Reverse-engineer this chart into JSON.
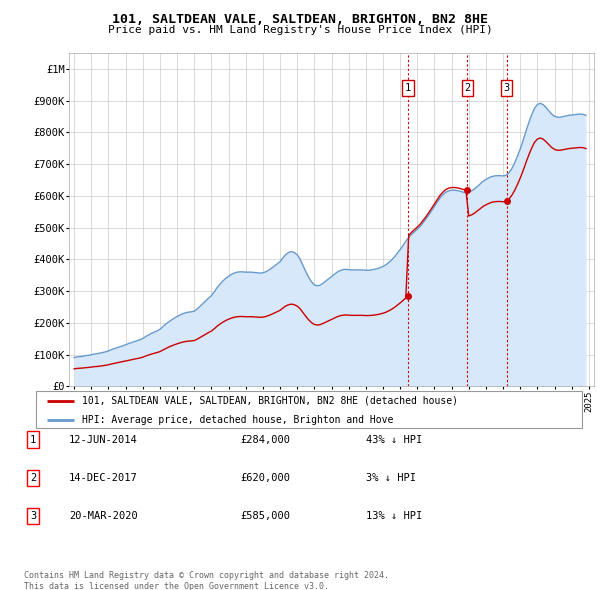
{
  "title": "101, SALTDEAN VALE, SALTDEAN, BRIGHTON, BN2 8HE",
  "subtitle": "Price paid vs. HM Land Registry's House Price Index (HPI)",
  "hpi_raw_years": [
    1995.0,
    1995.17,
    1995.33,
    1995.5,
    1995.67,
    1995.83,
    1996.0,
    1996.17,
    1996.33,
    1996.5,
    1996.67,
    1996.83,
    1997.0,
    1997.17,
    1997.33,
    1997.5,
    1997.67,
    1997.83,
    1998.0,
    1998.17,
    1998.33,
    1998.5,
    1998.67,
    1998.83,
    1999.0,
    1999.17,
    1999.33,
    1999.5,
    1999.67,
    1999.83,
    2000.0,
    2000.17,
    2000.33,
    2000.5,
    2000.67,
    2000.83,
    2001.0,
    2001.17,
    2001.33,
    2001.5,
    2001.67,
    2001.83,
    2002.0,
    2002.17,
    2002.33,
    2002.5,
    2002.67,
    2002.83,
    2003.0,
    2003.17,
    2003.33,
    2003.5,
    2003.67,
    2003.83,
    2004.0,
    2004.17,
    2004.33,
    2004.5,
    2004.67,
    2004.83,
    2005.0,
    2005.17,
    2005.33,
    2005.5,
    2005.67,
    2005.83,
    2006.0,
    2006.17,
    2006.33,
    2006.5,
    2006.67,
    2006.83,
    2007.0,
    2007.17,
    2007.33,
    2007.5,
    2007.67,
    2007.83,
    2008.0,
    2008.17,
    2008.33,
    2008.5,
    2008.67,
    2008.83,
    2009.0,
    2009.17,
    2009.33,
    2009.5,
    2009.67,
    2009.83,
    2010.0,
    2010.17,
    2010.33,
    2010.5,
    2010.67,
    2010.83,
    2011.0,
    2011.17,
    2011.33,
    2011.5,
    2011.67,
    2011.83,
    2012.0,
    2012.17,
    2012.33,
    2012.5,
    2012.67,
    2012.83,
    2013.0,
    2013.17,
    2013.33,
    2013.5,
    2013.67,
    2013.83,
    2014.0,
    2014.17,
    2014.33,
    2014.5,
    2014.67,
    2014.83,
    2015.0,
    2015.17,
    2015.33,
    2015.5,
    2015.67,
    2015.83,
    2016.0,
    2016.17,
    2016.33,
    2016.5,
    2016.67,
    2016.83,
    2017.0,
    2017.17,
    2017.33,
    2017.5,
    2017.67,
    2017.83,
    2018.0,
    2018.17,
    2018.33,
    2018.5,
    2018.67,
    2018.83,
    2019.0,
    2019.17,
    2019.33,
    2019.5,
    2019.67,
    2019.83,
    2020.0,
    2020.17,
    2020.33,
    2020.5,
    2020.67,
    2020.83,
    2021.0,
    2021.17,
    2021.33,
    2021.5,
    2021.67,
    2021.83,
    2022.0,
    2022.17,
    2022.33,
    2022.5,
    2022.67,
    2022.83,
    2023.0,
    2023.17,
    2023.33,
    2023.5,
    2023.67,
    2023.83,
    2024.0,
    2024.17,
    2024.33,
    2024.5,
    2024.67,
    2024.83
  ],
  "hpi_raw_values": [
    91000,
    93000,
    94000,
    95000,
    97000,
    98000,
    100000,
    102000,
    103000,
    105000,
    107000,
    109000,
    112000,
    116000,
    119000,
    122000,
    125000,
    128000,
    131000,
    135000,
    138000,
    141000,
    144000,
    147000,
    151000,
    157000,
    162000,
    167000,
    171000,
    175000,
    180000,
    188000,
    196000,
    203000,
    209000,
    215000,
    220000,
    225000,
    229000,
    232000,
    234000,
    235000,
    237000,
    244000,
    252000,
    261000,
    270000,
    278000,
    286000,
    298000,
    311000,
    322000,
    332000,
    340000,
    347000,
    353000,
    357000,
    360000,
    361000,
    361000,
    360000,
    360000,
    360000,
    359000,
    358000,
    357000,
    358000,
    361000,
    366000,
    372000,
    379000,
    386000,
    393000,
    405000,
    415000,
    422000,
    425000,
    422000,
    415000,
    401000,
    382000,
    362000,
    344000,
    330000,
    320000,
    317000,
    319000,
    325000,
    332000,
    339000,
    346000,
    353000,
    360000,
    365000,
    368000,
    369000,
    368000,
    367000,
    367000,
    367000,
    367000,
    367000,
    366000,
    366000,
    367000,
    369000,
    371000,
    374000,
    378000,
    383000,
    390000,
    398000,
    408000,
    419000,
    431000,
    444000,
    457000,
    469000,
    479000,
    487000,
    495000,
    504000,
    515000,
    527000,
    540000,
    553000,
    567000,
    581000,
    594000,
    604000,
    612000,
    616000,
    618000,
    618000,
    617000,
    615000,
    612000,
    611000,
    612000,
    616000,
    622000,
    630000,
    638000,
    646000,
    652000,
    657000,
    661000,
    663000,
    664000,
    664000,
    663000,
    665000,
    672000,
    685000,
    703000,
    724000,
    748000,
    775000,
    803000,
    831000,
    856000,
    876000,
    888000,
    892000,
    888000,
    879000,
    868000,
    858000,
    851000,
    848000,
    848000,
    850000,
    852000,
    854000,
    855000,
    856000,
    857000,
    858000,
    857000,
    854000
  ],
  "sales": [
    {
      "year": 2014.45,
      "price": 284000,
      "label": "1"
    },
    {
      "year": 2017.92,
      "price": 620000,
      "label": "2"
    },
    {
      "year": 2020.21,
      "price": 585000,
      "label": "3"
    }
  ],
  "sale_color": "#cc0000",
  "hpi_color": "#6699cc",
  "hpi_fill_color": "#d6e8fa",
  "vline_color": "#cc0000",
  "ylim": [
    0,
    1050000
  ],
  "xlim": [
    1994.7,
    2025.3
  ],
  "yticks": [
    0,
    100000,
    200000,
    300000,
    400000,
    500000,
    600000,
    700000,
    800000,
    900000,
    1000000
  ],
  "ytick_labels": [
    "£0",
    "£100K",
    "£200K",
    "£300K",
    "£400K",
    "£500K",
    "£600K",
    "£700K",
    "£800K",
    "£900K",
    "£1M"
  ],
  "xticks": [
    1995,
    1996,
    1997,
    1998,
    1999,
    2000,
    2001,
    2002,
    2003,
    2004,
    2005,
    2006,
    2007,
    2008,
    2009,
    2010,
    2011,
    2012,
    2013,
    2014,
    2015,
    2016,
    2017,
    2018,
    2019,
    2020,
    2021,
    2022,
    2023,
    2024,
    2025
  ],
  "footer_line1": "Contains HM Land Registry data © Crown copyright and database right 2024.",
  "footer_line2": "This data is licensed under the Open Government Licence v3.0.",
  "legend_label_red": "101, SALTDEAN VALE, SALTDEAN, BRIGHTON, BN2 8HE (detached house)",
  "legend_label_blue": "HPI: Average price, detached house, Brighton and Hove",
  "table_data": [
    {
      "num": "1",
      "date": "12-JUN-2014",
      "price": "£284,000",
      "change": "43% ↓ HPI"
    },
    {
      "num": "2",
      "date": "14-DEC-2017",
      "price": "£620,000",
      "change": "3% ↓ HPI"
    },
    {
      "num": "3",
      "date": "20-MAR-2020",
      "price": "£585,000",
      "change": "13% ↓ HPI"
    }
  ]
}
